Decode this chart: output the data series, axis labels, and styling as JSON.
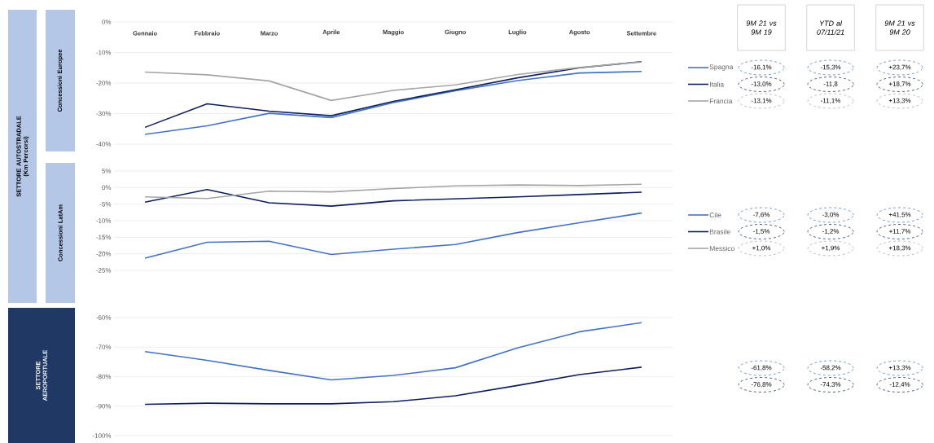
{
  "chart_data": [
    {
      "type": "line",
      "ylabel": "Concessioni Europee",
      "categories": [
        "Gennaio",
        "Febbraio",
        "Marzo",
        "Aprile",
        "Maggio",
        "Giugno",
        "Luglio",
        "Agosto",
        "Settembre"
      ],
      "series": [
        {
          "name": "Spagna",
          "color": "#4472c4",
          "values": [
            -36.8,
            -34.0,
            -29.9,
            -31.3,
            -26.4,
            -22.5,
            -19.2,
            -16.7,
            -16.2
          ]
        },
        {
          "name": "Italia",
          "color": "#0d1f5c",
          "values": [
            -34.5,
            -26.8,
            -29.2,
            -30.7,
            -26.0,
            -22.2,
            -18.3,
            -15.0,
            -13.0
          ]
        },
        {
          "name": "Francia",
          "color": "#a5a5a5",
          "values": [
            -16.4,
            -17.3,
            -19.3,
            -25.7,
            -22.4,
            -20.6,
            -17.2,
            -14.9,
            -13.1
          ]
        }
      ],
      "ylim": [
        -40,
        0
      ],
      "yticks": [
        {
          "value": 0,
          "label": "0%"
        },
        {
          "value": -10,
          "label": "-10%"
        },
        {
          "value": -20,
          "label": "-20%"
        },
        {
          "value": -30,
          "label": "-30%"
        },
        {
          "value": -40,
          "label": "-40%"
        }
      ],
      "grid": "y",
      "legend": "right",
      "annotations": [
        "SETTORE AUTOSTRADALE (Km Percorsi)",
        "9M 21 vs 9M 19",
        "YTD al 07/11/21",
        "9M 21 vs 9M 20",
        "-16,1%",
        "-15,3%",
        "+23,7%",
        "-13,0%",
        "-11,8",
        "+18,7%",
        "-13,1%",
        "-11,1%",
        "+13,3%"
      ]
    },
    {
      "type": "line",
      "ylabel": "Concessioni LatAm",
      "categories": [
        null,
        null,
        null,
        null,
        null,
        null,
        null,
        null,
        null
      ],
      "series": [
        {
          "name": "Cile",
          "color": "#4472c4",
          "values": [
            -21.3,
            -16.5,
            -16.2,
            -20.2,
            -18.6,
            -17.2,
            -13.6,
            -10.6,
            -7.7
          ]
        },
        {
          "name": "Brasile",
          "color": "#0d1f5c",
          "values": [
            -4.4,
            -0.6,
            -4.6,
            -5.6,
            -4.0,
            -3.4,
            -2.8,
            -2.1,
            -1.4
          ]
        },
        {
          "name": "Messico",
          "color": "#a5a5a5",
          "values": [
            -2.8,
            -3.3,
            -1.1,
            -1.3,
            -0.3,
            0.5,
            0.8,
            0.6,
            1.0
          ]
        }
      ],
      "ylim": [
        -25,
        5
      ],
      "yticks": [
        {
          "value": 5,
          "label": "5%"
        },
        {
          "value": 0,
          "label": "0%"
        },
        {
          "value": -5,
          "label": "-5%"
        },
        {
          "value": -10,
          "label": "-10%"
        },
        {
          "value": -15,
          "label": "-15%"
        },
        {
          "value": -20,
          "label": "-20%"
        },
        {
          "value": -25,
          "label": "-25%"
        }
      ],
      "grid": "y",
      "legend": "right",
      "tick_labels": "y",
      "annotations": [
        "-7,6%",
        "-3,0%",
        "+41,5%",
        "-1,5%",
        "-1,2%",
        "+11,7%",
        "+1,0%",
        "+1,9%",
        "+18,3%"
      ]
    },
    {
      "type": "line",
      "ylabel": "SETTORE AEROPORTUALE",
      "categories": [
        null,
        null,
        null,
        null,
        null,
        null,
        null,
        null,
        null
      ],
      "series": [
        {
          "color": "#4472c4",
          "values": [
            -71.5,
            -74.5,
            -77.9,
            -81.1,
            -79.6,
            -77.0,
            -70.3,
            -64.8,
            -61.7
          ]
        },
        {
          "color": "#0d1f5c",
          "values": [
            -89.4,
            -89.0,
            -89.2,
            -89.2,
            -88.5,
            -86.5,
            -83.0,
            -79.3,
            -76.8
          ]
        }
      ],
      "ylim": [
        -100,
        -60
      ],
      "yticks": [
        {
          "value": -60,
          "label": "-60%"
        },
        {
          "value": -70,
          "label": "-70%"
        },
        {
          "value": -80,
          "label": "-80%"
        },
        {
          "value": -90,
          "label": "-90%"
        },
        {
          "value": -100,
          "label": "-100%"
        }
      ],
      "grid": "y",
      "tick_labels": "y",
      "annotations": [
        "-61,8%",
        "-58,2%",
        "+13,3%",
        "-76,8%",
        "-74,3%",
        "-12,4%"
      ]
    }
  ]
}
